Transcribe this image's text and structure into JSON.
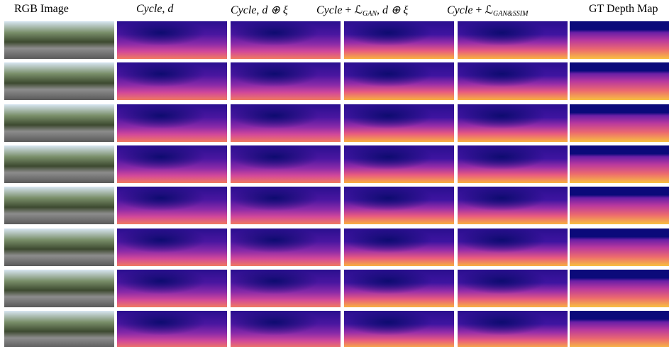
{
  "figure": {
    "columns": [
      {
        "parts": [
          "RGB Image"
        ]
      },
      {
        "parts": [
          "Cycle",
          ", ",
          "d"
        ]
      },
      {
        "parts": [
          "Cycle",
          ", ",
          "d ⊕ ξ"
        ]
      },
      {
        "parts": [
          "Cycle",
          " + ",
          "ℒ",
          "GAN",
          ", ",
          "d ⊕ ξ"
        ]
      },
      {
        "parts": [
          "Cycle",
          " + ",
          "ℒ",
          "GAN&SSIM"
        ]
      },
      {
        "parts": [
          "GT Depth Map"
        ]
      }
    ]
  }
}
